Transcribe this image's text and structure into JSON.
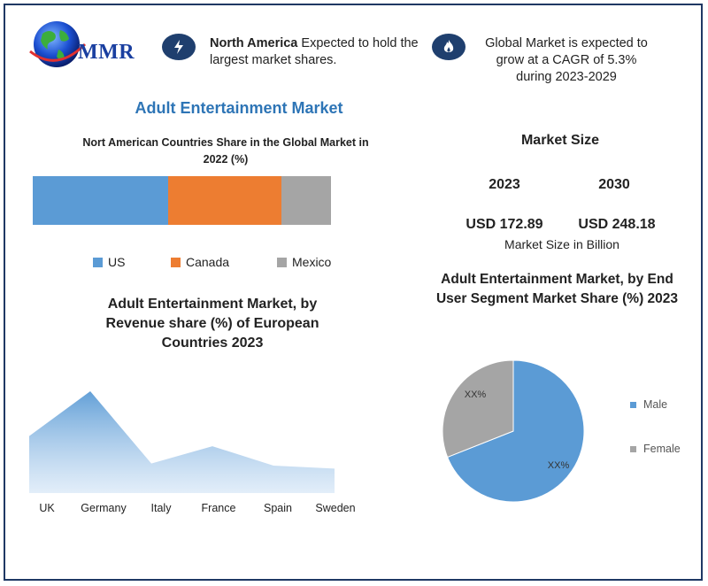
{
  "header": {
    "logo_text": "MMR",
    "highlight1": {
      "bold": "North America",
      "rest": " Expected to hold the largest market shares."
    },
    "highlight2": {
      "text": "Global Market is expected to grow at a CAGR of 5.3% during 2023-2029"
    },
    "icon1": "lightning-icon",
    "icon2": "flame-icon"
  },
  "main_title": "Adult Entertainment Market",
  "colors": {
    "blue": "#5b9bd5",
    "orange": "#ed7d31",
    "gray": "#a5a5a5",
    "title_blue": "#2e75b6",
    "navy": "#1f3864"
  },
  "market_size": {
    "title": "Market Size",
    "year1": "2023",
    "year2": "2030",
    "value1": "USD 172.89",
    "value2": "USD 248.18",
    "unit_label": "Market Size in Billion"
  },
  "chart_data": [
    {
      "type": "bar",
      "stacked": true,
      "orientation": "horizontal",
      "title": "Nort American Countries Share in the Global Market in 2022  (%)",
      "series": [
        {
          "name": "US",
          "value": 45.5,
          "color": "#5b9bd5"
        },
        {
          "name": "Canada",
          "value": 38.0,
          "color": "#ed7d31"
        },
        {
          "name": "Mexico",
          "value": 16.5,
          "color": "#a5a5a5"
        }
      ],
      "legend": "bottom"
    },
    {
      "type": "area",
      "title": "Adult Entertainment Market, by Revenue share (%) of European Countries 2023",
      "categories": [
        "UK",
        "Germany",
        "Italy",
        "France",
        "Spain",
        "Sweden"
      ],
      "values": [
        56,
        100,
        29,
        46,
        27,
        24
      ],
      "ylim": [
        0,
        100
      ],
      "color": "#5b9bd5",
      "grid": false
    },
    {
      "type": "pie",
      "title": "Adult Entertainment Market, by End User Segment Market Share (%) 2023",
      "labels": [
        "Male",
        "Female"
      ],
      "values": [
        69,
        31
      ],
      "data_labels": [
        "XX%",
        "XX%"
      ],
      "colors": [
        "#5b9bd5",
        "#a5a5a5"
      ],
      "legend": "right"
    }
  ]
}
